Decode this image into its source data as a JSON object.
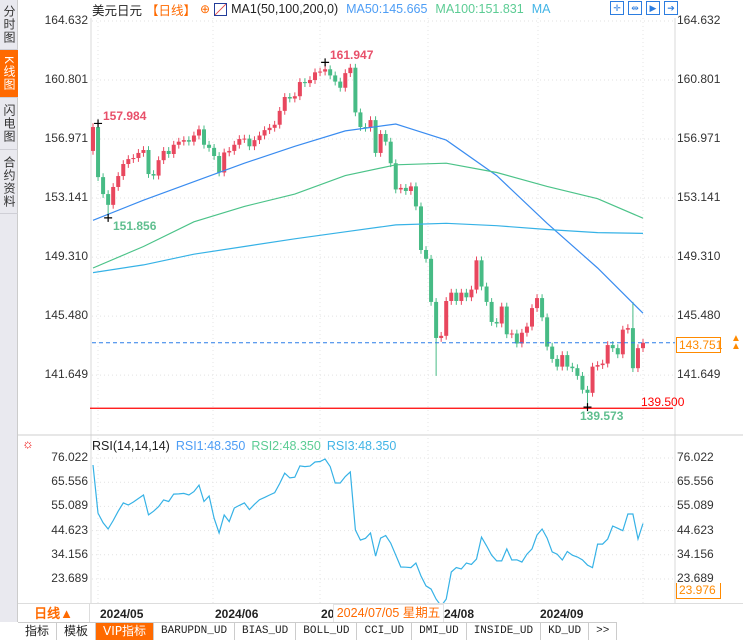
{
  "sidebar": {
    "items": [
      {
        "label": "分时图",
        "active": false
      },
      {
        "label": "K线图",
        "active": true
      },
      {
        "label": "闪电图",
        "active": false
      },
      {
        "label": "合约资料",
        "active": false
      }
    ]
  },
  "header": {
    "symbol": "美元日元",
    "period": "【日线】",
    "add_icon": "circle-plus-icon",
    "indicator_icon": "ma-chart-icon",
    "ma_name": "MA1(50,100,200,0)",
    "ma50": "MA50:145.665",
    "ma100": "MA100:151.831",
    "ma200": "MA",
    "toolbar": [
      "crosshair-icon",
      "zoom-range-icon",
      "play-step-icon",
      "exit-icon"
    ]
  },
  "colors": {
    "up": "#e8475e",
    "down": "#47bb85",
    "ma50": "#3a8cf0",
    "ma100": "#4cc389",
    "ma200": "#36b2e6",
    "rsi": "#36b2e6",
    "accent": "#ff6a00",
    "support": "#ff0000",
    "last_price_line": "#2a7de8"
  },
  "price_axis": {
    "ticks": [
      "164.632",
      "160.801",
      "156.971",
      "153.141",
      "149.310",
      "145.480",
      "141.649"
    ]
  },
  "last_price": {
    "value": "143.751",
    "icon": "double-up-arrow-icon"
  },
  "support_line": {
    "value": "139.500"
  },
  "markers": {
    "high_left": "157.984",
    "high_peak": "161.947",
    "low_left": "151.856",
    "low_bottom": "139.573"
  },
  "rsi_panel": {
    "icon": "sun-indicator-icon",
    "name": "RSI(14,14,14)",
    "rsi1": "RSI1:48.350",
    "rsi2": "RSI2:48.350",
    "rsi3": "RSI3:48.350",
    "ticks": [
      "76.022",
      "65.556",
      "55.089",
      "44.623",
      "34.156",
      "23.689"
    ],
    "current": "23.976"
  },
  "time_axis": {
    "period_label": "日线▲",
    "dates": [
      "2024/05",
      "2024/06",
      "202",
      "24/08",
      "2024/09"
    ],
    "tooltip": "2024/07/05 星期五"
  },
  "tabs": [
    "指标",
    "模板",
    "VIP指标",
    "BARUPDN_UD",
    "BIAS_UD",
    "BOLL_UD",
    "CCI_UD",
    "DMI_UD",
    "INSIDE_UD",
    "KD_UD",
    ">>"
  ],
  "active_tab": 2,
  "chart_data": [
    {
      "type": "candlestick",
      "title": "美元日元",
      "first_open": 156.2,
      "closes": [
        157.75,
        154.5,
        153.4,
        152.7,
        153.86,
        154.57,
        155.35,
        155.67,
        155.74,
        156.07,
        156.26,
        154.7,
        154.6,
        155.6,
        156.2,
        156.0,
        156.6,
        156.8,
        156.9,
        156.8,
        157.2,
        157.6,
        156.6,
        156.4,
        155.87,
        154.8,
        156.1,
        156.2,
        156.6,
        156.97,
        157.0,
        156.5,
        156.9,
        157.2,
        157.55,
        157.7,
        157.9,
        158.8,
        159.7,
        159.6,
        159.75,
        160.67,
        160.6,
        160.8,
        161.3,
        161.35,
        161.5,
        161.1,
        160.7,
        160.3,
        161.25,
        161.6,
        158.7,
        157.75,
        157.7,
        158.2,
        156.07,
        157.3,
        156.8,
        155.4,
        153.7,
        153.8,
        153.6,
        153.9,
        152.6,
        149.77,
        149.2,
        146.4,
        144.06,
        144.2,
        146.46,
        147.0,
        146.46,
        147.0,
        146.7,
        147.2,
        149.1,
        147.4,
        146.4,
        145.1,
        145.0,
        146.1,
        144.3,
        144.35,
        143.7,
        144.4,
        144.8,
        146.0,
        146.65,
        145.4,
        143.5,
        142.7,
        142.2,
        142.95,
        142.2,
        142.1,
        141.6,
        140.7,
        140.5,
        142.2,
        142.3,
        142.4,
        143.6,
        143.4,
        143.0,
        144.6,
        144.7,
        142.1,
        143.4,
        143.75
      ],
      "wick_extremes": [
        {
          "candle": 2,
          "high": 157.984
        },
        {
          "candle": 4,
          "low": 151.856
        },
        {
          "candle": 47,
          "high": 161.947
        },
        {
          "candle": 69,
          "low": 141.6
        },
        {
          "candle": 99,
          "low": 139.573
        },
        {
          "candle": 108,
          "high": 146.4
        }
      ],
      "moving_averages": {
        "sample_candles": [
          1,
          11,
          21,
          31,
          41,
          51,
          61,
          71,
          81,
          91,
          101,
          110
        ],
        "series": [
          {
            "name": "MA50",
            "values": [
              151.7,
              153.0,
              154.2,
              155.4,
              156.5,
              157.5,
              157.95,
              156.9,
              154.6,
              151.5,
              148.6,
              145.665
            ]
          },
          {
            "name": "MA100",
            "values": [
              148.6,
              150.0,
              151.6,
              152.6,
              153.4,
              154.6,
              155.3,
              155.4,
              154.8,
              153.9,
              153.1,
              151.831
            ]
          },
          {
            "name": "MA200",
            "values": [
              148.3,
              148.8,
              149.5,
              150.0,
              150.5,
              150.95,
              151.4,
              151.5,
              151.35,
              151.1,
              150.9,
              150.85
            ]
          }
        ]
      },
      "ylim": [
        139.0,
        164.632
      ],
      "last_price": 143.751,
      "support": 139.5,
      "x_ticks": [
        "2024/05",
        "2024/06",
        "2024/07",
        "2024/08",
        "2024/09"
      ],
      "grid": true
    },
    {
      "type": "line",
      "title": "RSI(14,14,14)",
      "series": [
        {
          "name": "RSI1",
          "values": [
            73.0,
            52.2,
            48,
            45.3,
            49,
            53,
            56.6,
            55.7,
            57,
            58.5,
            60.0,
            51.4,
            53,
            55.0,
            57.9,
            57.2,
            60.4,
            60.5,
            60.7,
            60.0,
            61.5,
            64.3,
            57.2,
            59.6,
            50,
            43.6,
            51.4,
            48.5,
            54.4,
            55.5,
            56.6,
            53.7,
            56,
            58.0,
            59,
            60,
            61.0,
            65,
            69.5,
            67.4,
            67.7,
            72.6,
            72.3,
            72.5,
            74.3,
            74.5,
            75.6,
            72.3,
            65.2,
            65.2,
            68,
            70.0,
            44.9,
            40.5,
            41.3,
            43.6,
            33.6,
            41.4,
            42.5,
            39.2,
            34,
            28.9,
            28.8,
            28.6,
            30.6,
            25,
            20.7,
            19.3,
            15.0,
            12,
            15.0,
            26.7,
            28.6,
            28.0,
            30.6,
            30.0,
            32.3,
            41.8,
            38,
            34,
            31.5,
            31.5,
            36.7,
            31.9,
            32.0,
            31.0,
            34.4,
            36.7,
            42.7,
            45.3,
            41.4,
            35.4,
            34.4,
            31.9,
            35.6,
            34.0,
            33.2,
            32.0,
            29.7,
            28.6,
            38.8,
            38.8,
            41.0,
            46.6,
            45.6,
            44.6,
            51.8,
            51.8,
            41.0,
            47.7
          ]
        }
      ],
      "yticks": [
        76.022,
        65.556,
        55.089,
        44.623,
        34.156,
        23.689
      ],
      "grid": true
    }
  ]
}
